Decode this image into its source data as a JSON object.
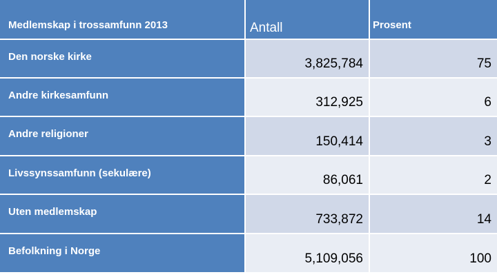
{
  "table": {
    "header": {
      "label": "Medlemskap i trossamfunn 2013",
      "count": "Antall",
      "percent": "Prosent"
    },
    "rows": [
      {
        "label": "Den norske kirke",
        "count": "3,825,784",
        "percent": "75"
      },
      {
        "label": "Andre kirkesamfunn",
        "count": "312,925",
        "percent": "6"
      },
      {
        "label": "Andre religioner",
        "count": "150,414",
        "percent": "3"
      },
      {
        "label": "Livssynssamfunn (sekulære)",
        "count": "86,061",
        "percent": "2"
      },
      {
        "label": "Uten medlemskap",
        "count": "733,872",
        "percent": "14"
      },
      {
        "label": "Befolkning i Norge",
        "count": "5,109,056",
        "percent": "100"
      }
    ]
  },
  "colors": {
    "header": "#4f81bd",
    "row_odd": "#d0d8e8",
    "row_even": "#e9edf4"
  }
}
